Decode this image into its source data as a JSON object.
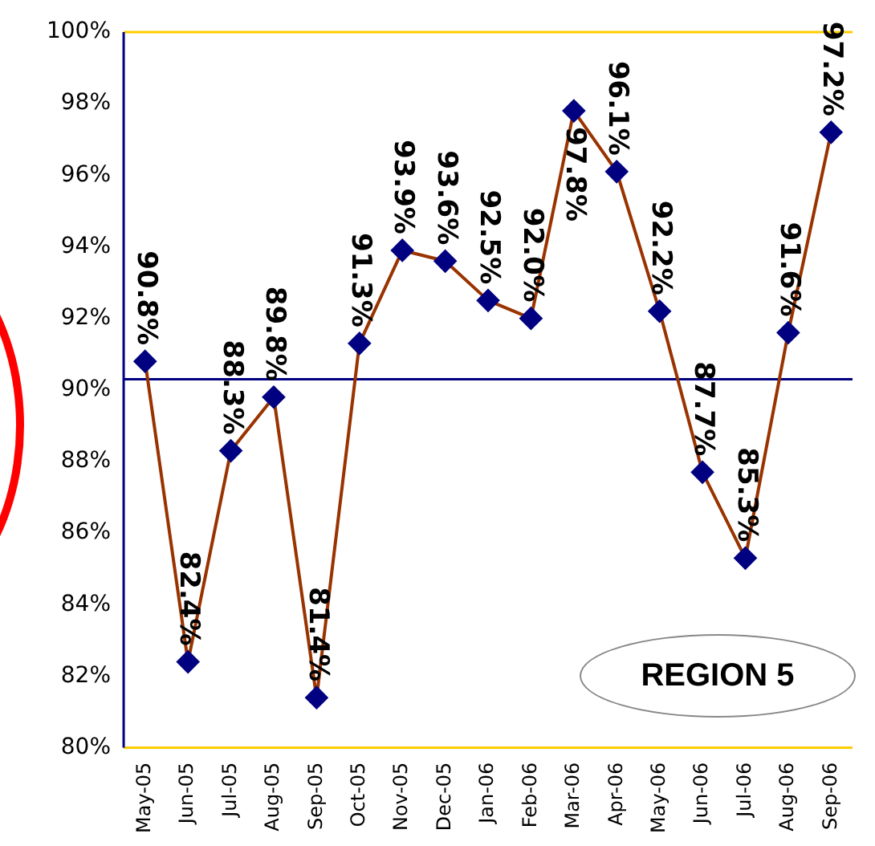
{
  "chart_data": {
    "type": "line",
    "categories": [
      "May-05",
      "Jun-05",
      "Jul-05",
      "Aug-05",
      "Sep-05",
      "Oct-05",
      "Nov-05",
      "Dec-05",
      "Jan-06",
      "Feb-06",
      "Mar-06",
      "Apr-06",
      "May-06",
      "Jun-06",
      "Jul-06",
      "Aug-06",
      "Sep-06"
    ],
    "series": [
      {
        "color": "#993300",
        "values": [
          90.8,
          82.4,
          88.3,
          89.8,
          81.4,
          91.3,
          93.9,
          93.6,
          92.5,
          92.0,
          97.8,
          96.1,
          92.2,
          87.7,
          85.3,
          91.6,
          97.2
        ],
        "value_labels": [
          "90.8%",
          "82.4%",
          "88.3%",
          "89.8%",
          "81.4%",
          "91.3%",
          "93.9%",
          "93.6%",
          "92.5%",
          "92.0%",
          "97.8%",
          "96.1%",
          "92.2%",
          "87.7%",
          "85.3%",
          "91.6%",
          "97.2%"
        ]
      }
    ],
    "ylim": [
      80,
      100
    ],
    "yticks": [
      {
        "value": 80,
        "label": "80%"
      },
      {
        "value": 82,
        "label": "82%"
      },
      {
        "value": 84,
        "label": "84%"
      },
      {
        "value": 86,
        "label": "86%"
      },
      {
        "value": 88,
        "label": "88%"
      },
      {
        "value": 90,
        "label": "90%"
      },
      {
        "value": 92,
        "label": "92%"
      },
      {
        "value": 94,
        "label": "94%"
      },
      {
        "value": 96,
        "label": "96%"
      },
      {
        "value": 98,
        "label": "98%"
      },
      {
        "value": 100,
        "label": "100%"
      }
    ],
    "ref_lines": [
      {
        "axis": "y",
        "value": 90.3,
        "color": "#000080"
      }
    ],
    "grid": false,
    "legend": false,
    "marker": "diamond",
    "line_style": "solid",
    "annotations": [
      "REGION 5"
    ]
  }
}
